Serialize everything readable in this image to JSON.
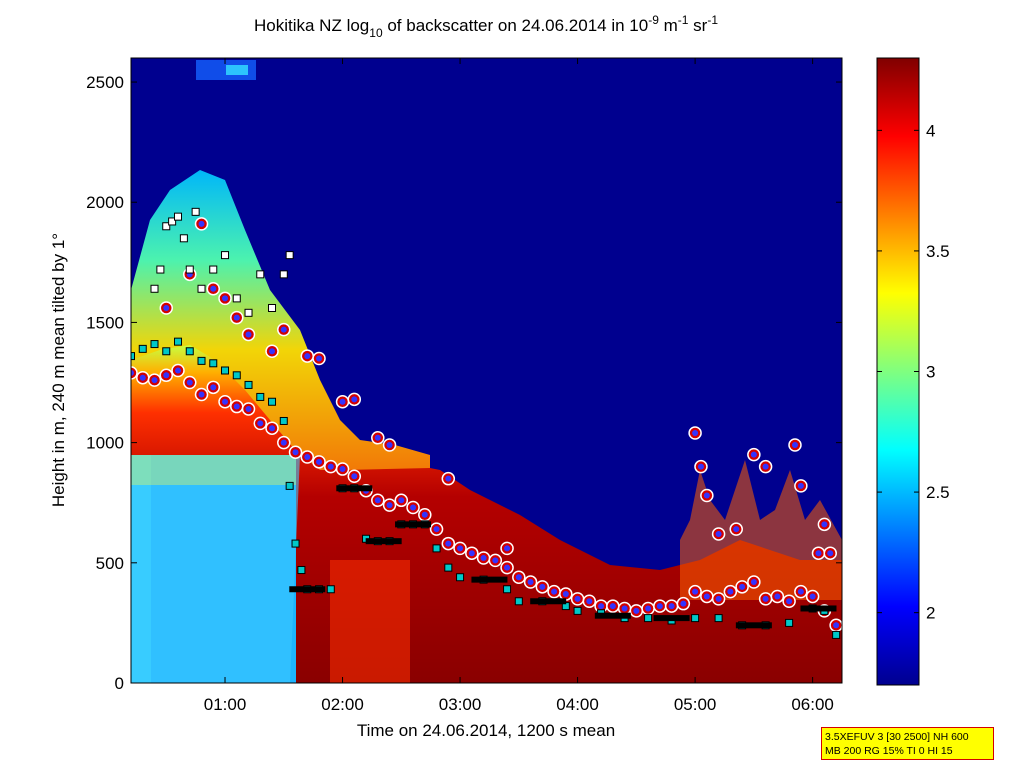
{
  "chart_data": {
    "type": "heatmap",
    "title": {
      "prefix": "Hokitika NZ log",
      "sub": "10",
      "middle": " of backscatter on 24.06.2014 in 10",
      "sup1": "-9",
      "mid2": " m",
      "sup2": "-1",
      "mid3": " sr",
      "sup3": "-1"
    },
    "xlabel": "Time on 24.06.2014, 1200 s mean",
    "ylabel": "Height in m, 240 m mean tilted by 1°",
    "x_range_hours": [
      0.2,
      6.25
    ],
    "x_ticks": [
      "01:00",
      "02:00",
      "03:00",
      "04:00",
      "05:00",
      "06:00"
    ],
    "x_tick_hours": [
      1,
      2,
      3,
      4,
      5,
      6
    ],
    "ylim": [
      0,
      2600
    ],
    "y_ticks": [
      0,
      500,
      1000,
      1500,
      2000,
      2500
    ],
    "colorbar": {
      "min": 1.7,
      "max": 4.3,
      "ticks": [
        "2",
        "2.5",
        "3",
        "3.5",
        "4"
      ],
      "tick_values": [
        2,
        2.5,
        3,
        3.5,
        4
      ],
      "colormap": "jet"
    },
    "series": [
      {
        "marker": "circle",
        "colors": [
          "#d40000",
          "#3333ff",
          "#ffffff"
        ],
        "points": [
          [
            0.2,
            1290
          ],
          [
            0.3,
            1270
          ],
          [
            0.4,
            1260
          ],
          [
            0.5,
            1280
          ],
          [
            0.6,
            1300
          ],
          [
            0.7,
            1250
          ],
          [
            0.8,
            1200
          ],
          [
            0.9,
            1230
          ],
          [
            1.0,
            1170
          ],
          [
            1.1,
            1150
          ],
          [
            1.2,
            1140
          ],
          [
            1.3,
            1080
          ],
          [
            1.4,
            1060
          ],
          [
            1.5,
            1000
          ],
          [
            1.6,
            960
          ],
          [
            1.7,
            940
          ],
          [
            1.8,
            920
          ],
          [
            1.9,
            900
          ],
          [
            2.0,
            890
          ],
          [
            2.1,
            860
          ],
          [
            2.2,
            800
          ],
          [
            2.3,
            760
          ],
          [
            2.4,
            740
          ],
          [
            2.5,
            760
          ],
          [
            2.6,
            730
          ],
          [
            2.7,
            700
          ],
          [
            2.8,
            640
          ],
          [
            2.9,
            580
          ],
          [
            3.0,
            560
          ],
          [
            3.1,
            540
          ],
          [
            3.2,
            520
          ],
          [
            3.3,
            510
          ],
          [
            3.4,
            480
          ],
          [
            3.5,
            440
          ],
          [
            3.6,
            420
          ],
          [
            3.7,
            400
          ],
          [
            3.8,
            380
          ],
          [
            3.9,
            370
          ],
          [
            4.0,
            350
          ],
          [
            4.1,
            340
          ],
          [
            4.2,
            320
          ],
          [
            4.3,
            320
          ],
          [
            4.4,
            310
          ],
          [
            4.5,
            300
          ],
          [
            4.6,
            310
          ],
          [
            4.7,
            320
          ],
          [
            4.8,
            320
          ],
          [
            4.9,
            330
          ],
          [
            5.0,
            380
          ],
          [
            5.1,
            360
          ],
          [
            5.2,
            350
          ],
          [
            5.3,
            380
          ],
          [
            5.4,
            400
          ],
          [
            5.5,
            420
          ],
          [
            5.6,
            350
          ],
          [
            5.7,
            360
          ],
          [
            5.8,
            340
          ],
          [
            5.9,
            380
          ],
          [
            6.0,
            360
          ],
          [
            6.1,
            300
          ],
          [
            6.2,
            240
          ]
        ]
      },
      {
        "marker": "circle",
        "colors": [
          "#d40000",
          "#3333ff",
          "#ffffff"
        ],
        "points": [
          [
            0.5,
            1560
          ],
          [
            0.7,
            1700
          ],
          [
            0.8,
            1910
          ],
          [
            0.9,
            1640
          ],
          [
            1.0,
            1600
          ],
          [
            1.1,
            1520
          ],
          [
            1.2,
            1450
          ],
          [
            1.4,
            1380
          ],
          [
            1.5,
            1470
          ],
          [
            1.7,
            1360
          ],
          [
            1.8,
            1350
          ],
          [
            2.0,
            1170
          ],
          [
            2.1,
            1180
          ],
          [
            2.3,
            1020
          ],
          [
            2.4,
            990
          ],
          [
            2.9,
            850
          ],
          [
            3.4,
            560
          ],
          [
            5.0,
            1040
          ],
          [
            5.05,
            900
          ],
          [
            5.1,
            780
          ],
          [
            5.2,
            620
          ],
          [
            5.35,
            640
          ],
          [
            5.5,
            950
          ],
          [
            5.6,
            900
          ],
          [
            5.85,
            990
          ],
          [
            5.9,
            820
          ],
          [
            6.05,
            540
          ],
          [
            6.1,
            660
          ],
          [
            6.15,
            540
          ]
        ]
      },
      {
        "marker": "square",
        "colors": [
          "#00c8c8",
          "#000000"
        ],
        "points": [
          [
            0.2,
            1360
          ],
          [
            0.3,
            1390
          ],
          [
            0.4,
            1410
          ],
          [
            0.5,
            1380
          ],
          [
            0.6,
            1420
          ],
          [
            0.7,
            1380
          ],
          [
            0.8,
            1340
          ],
          [
            0.9,
            1330
          ],
          [
            1.0,
            1300
          ],
          [
            1.1,
            1280
          ],
          [
            1.2,
            1240
          ],
          [
            1.3,
            1190
          ],
          [
            1.4,
            1170
          ],
          [
            1.5,
            1090
          ],
          [
            1.55,
            820
          ],
          [
            1.6,
            580
          ],
          [
            1.65,
            470
          ],
          [
            1.7,
            390
          ],
          [
            1.8,
            390
          ],
          [
            1.9,
            390
          ],
          [
            2.0,
            810
          ],
          [
            2.1,
            810
          ],
          [
            2.2,
            600
          ],
          [
            2.3,
            590
          ],
          [
            2.4,
            590
          ],
          [
            2.5,
            660
          ],
          [
            2.6,
            660
          ],
          [
            2.7,
            660
          ],
          [
            2.8,
            560
          ],
          [
            2.9,
            480
          ],
          [
            3.0,
            440
          ],
          [
            3.2,
            430
          ],
          [
            3.4,
            390
          ],
          [
            3.5,
            340
          ],
          [
            3.7,
            340
          ],
          [
            3.9,
            320
          ],
          [
            4.0,
            300
          ],
          [
            4.2,
            290
          ],
          [
            4.4,
            270
          ],
          [
            4.6,
            270
          ],
          [
            4.8,
            260
          ],
          [
            5.0,
            270
          ],
          [
            5.2,
            270
          ],
          [
            5.4,
            240
          ],
          [
            5.6,
            240
          ],
          [
            5.8,
            250
          ],
          [
            6.0,
            310
          ],
          [
            6.1,
            300
          ],
          [
            6.2,
            200
          ]
        ]
      },
      {
        "marker": "square",
        "colors": [
          "#ffffff",
          "#000000"
        ],
        "points": [
          [
            0.4,
            1640
          ],
          [
            0.45,
            1720
          ],
          [
            0.5,
            1900
          ],
          [
            0.55,
            1920
          ],
          [
            0.6,
            1940
          ],
          [
            0.65,
            1850
          ],
          [
            0.7,
            1720
          ],
          [
            0.75,
            1960
          ],
          [
            0.8,
            1640
          ],
          [
            0.9,
            1720
          ],
          [
            1.0,
            1780
          ],
          [
            1.1,
            1600
          ],
          [
            1.2,
            1540
          ],
          [
            1.3,
            1700
          ],
          [
            1.4,
            1560
          ],
          [
            1.5,
            1700
          ],
          [
            1.55,
            1780
          ]
        ]
      },
      {
        "marker": "bar",
        "colors": [
          "#000000"
        ],
        "points": [
          [
            1.7,
            390
          ],
          [
            2.1,
            810
          ],
          [
            2.35,
            590
          ],
          [
            2.6,
            660
          ],
          [
            3.25,
            430
          ],
          [
            3.75,
            340
          ],
          [
            4.3,
            280
          ],
          [
            4.8,
            270
          ],
          [
            5.5,
            240
          ],
          [
            6.05,
            310
          ]
        ]
      }
    ]
  },
  "info": {
    "line1": "3.5XEFUV 3 [30 2500] NH 600",
    "line2": "MB 200 RG 15% TI 0 HI 15"
  },
  "colors": {
    "background": "#ffffff",
    "low": "#00008f",
    "high": "#800000",
    "info_bg": "#ffff00",
    "info_border": "#d40000"
  }
}
